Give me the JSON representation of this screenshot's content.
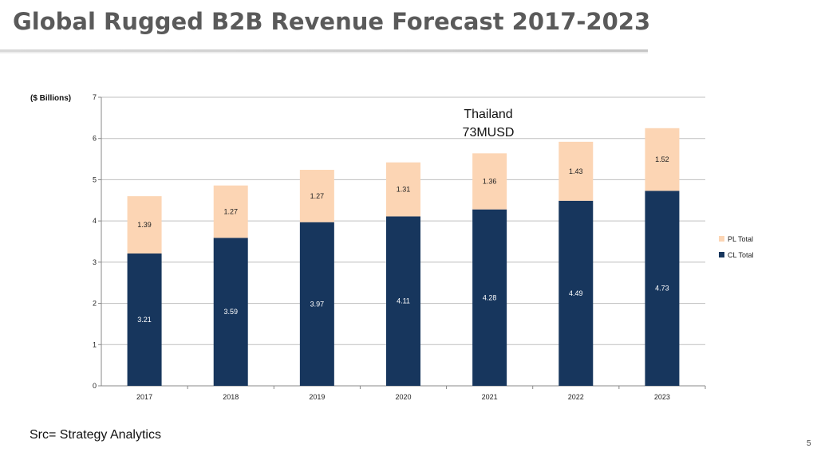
{
  "slide": {
    "title": "Global Rugged B2B Revenue Forecast 2017-2023",
    "source": "Src= Strategy Analytics",
    "page_number": "5"
  },
  "colors": {
    "cl": "#17365d",
    "pl": "#fcd5b4",
    "grid": "#bfbfbf",
    "axis": "#888888"
  },
  "chart_data": {
    "type": "bar",
    "stacked": true,
    "title": "",
    "ylabel": "($ Billions)",
    "xlabel": "",
    "ylim": [
      0,
      7
    ],
    "yticks": [
      0,
      1,
      2,
      3,
      4,
      5,
      6,
      7
    ],
    "categories": [
      "2017",
      "2018",
      "2019",
      "2020",
      "2021",
      "2022",
      "2023"
    ],
    "series": [
      {
        "name": "CL Total",
        "values": [
          3.21,
          3.59,
          3.97,
          4.11,
          4.28,
          4.49,
          4.73
        ],
        "color": "#17365d"
      },
      {
        "name": "PL Total",
        "values": [
          1.39,
          1.27,
          1.27,
          1.31,
          1.36,
          1.43,
          1.52
        ],
        "color": "#fcd5b4"
      }
    ],
    "legend": [
      {
        "name": "PL Total",
        "color": "#fcd5b4"
      },
      {
        "name": "CL Total",
        "color": "#17365d"
      }
    ],
    "legend_position": "right",
    "annotation": {
      "line1": "Thailand",
      "line2": "73MUSD"
    }
  }
}
